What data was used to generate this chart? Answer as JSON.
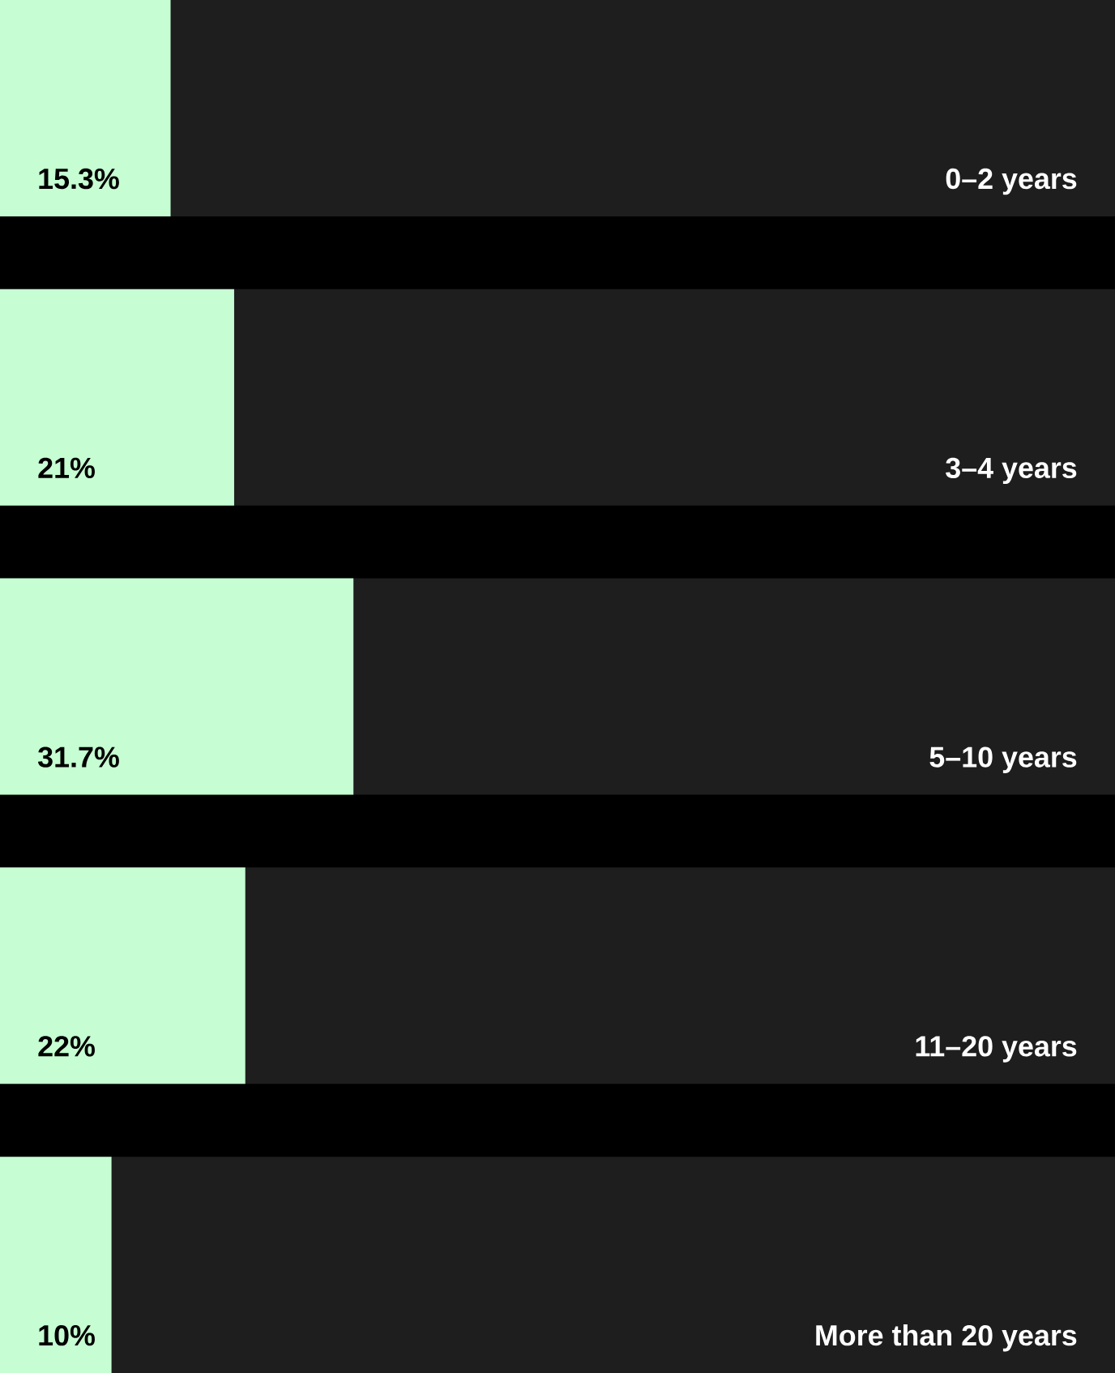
{
  "chart_data": {
    "type": "bar",
    "orientation": "horizontal",
    "categories": [
      "0–2 years",
      "3–4 years",
      "5–10 years",
      "11–20 years",
      "More than 20 years"
    ],
    "values": [
      15.3,
      21,
      31.7,
      22,
      10
    ],
    "value_labels": [
      "15.3%",
      "21%",
      "31.7%",
      "22%",
      "10%"
    ],
    "color": "#c6fdd2",
    "xlim": [
      0,
      100
    ]
  }
}
